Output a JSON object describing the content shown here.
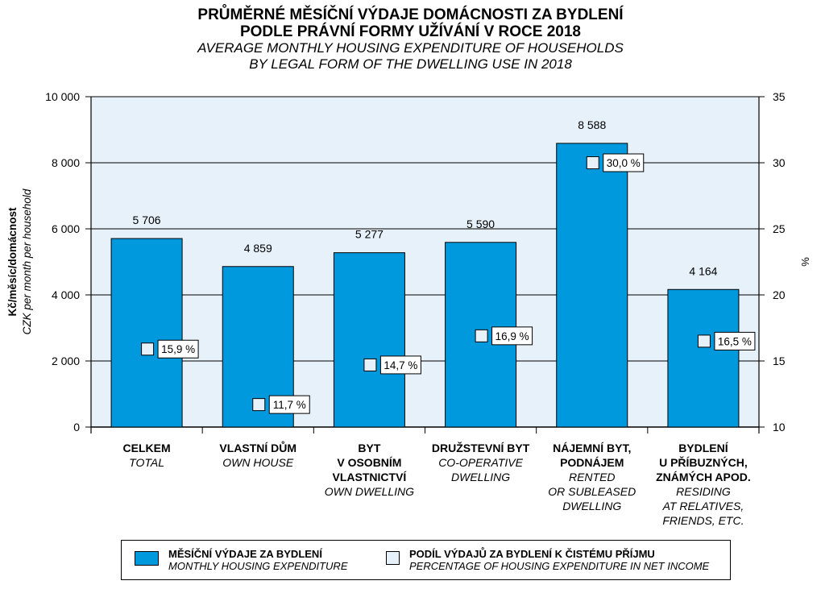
{
  "title": {
    "cz_line1": "PRŮMĚRNÉ MĚSÍČNÍ VÝDAJE DOMÁCNOSTI ZA BYDLENÍ",
    "cz_line2": "PODLE PRÁVNÍ FORMY UŽÍVÁNÍ V ROCE 2018",
    "en_line1": "AVERAGE MONTHLY HOUSING EXPENDITURE OF HOUSEHOLDS",
    "en_line2": "BY LEGAL FORM OF THE DWELLING USE IN 2018"
  },
  "legend": {
    "bar_cz": "MĚSÍČNÍ VÝDAJE ZA BYDLENÍ",
    "bar_en": "MONTHLY HOUSING EXPENDITURE",
    "mark_cz": "PODÍL VÝDAJŮ ZA BYDLENÍ K ČISTÉMU PŘÍJMU",
    "mark_en": "PERCENTAGE OF HOUSING EXPENDITURE IN NET INCOME"
  },
  "colors": {
    "bar": "#0099dd",
    "plot_bg": "#e6f1f9",
    "marker": "#e6f1f9"
  },
  "chart_data": {
    "type": "bar",
    "ylabel_cz": "Kč/měsíc/domácnost",
    "ylabel_en": "CZK per month per household",
    "y2label": "%",
    "ylim": [
      0,
      10000
    ],
    "y_ticks": [
      "0",
      "2 000",
      "4 000",
      "6 000",
      "8 000",
      "10 000"
    ],
    "y_tick_values": [
      0,
      2000,
      4000,
      6000,
      8000,
      10000
    ],
    "y2lim": [
      10,
      35
    ],
    "y2_ticks": [
      "10",
      "15",
      "20",
      "25",
      "30",
      "35"
    ],
    "y2_tick_values": [
      10,
      15,
      20,
      25,
      30,
      35
    ],
    "grid": "horizontal",
    "categories": [
      {
        "cz": [
          "CELKEM"
        ],
        "en": [
          "TOTAL"
        ]
      },
      {
        "cz": [
          "VLASTNÍ DŮM"
        ],
        "en": [
          "OWN HOUSE"
        ]
      },
      {
        "cz": [
          "BYT",
          "V OSOBNÍM",
          "VLASTNICTVÍ"
        ],
        "en": [
          "OWN DWELLING"
        ]
      },
      {
        "cz": [
          "DRUŽSTEVNÍ BYT"
        ],
        "en": [
          "CO-OPERATIVE",
          "DWELLING"
        ]
      },
      {
        "cz": [
          "NÁJEMNÍ BYT,",
          "PODNÁJEM"
        ],
        "en": [
          "RENTED",
          "OR SUBLEASED",
          "DWELLING"
        ]
      },
      {
        "cz": [
          "BYDLENÍ",
          "U PŘÍBUZNÝCH,",
          "ZNÁMÝCH APOD."
        ],
        "en": [
          "RESIDING",
          "AT RELATIVES,",
          "FRIENDS, ETC."
        ]
      }
    ],
    "series": [
      {
        "axis": "left",
        "values": [
          5706,
          4859,
          5277,
          5590,
          8588,
          4164
        ],
        "labels": [
          "5 706",
          "4 859",
          "5 277",
          "5 590",
          "8 588",
          "4 164"
        ]
      },
      {
        "axis": "right",
        "values": [
          15.9,
          11.7,
          14.7,
          16.9,
          30.0,
          16.5
        ],
        "labels": [
          "15,9 %",
          "11,7 %",
          "14,7 %",
          "16,9 %",
          "30,0 %",
          "16,5 %"
        ]
      }
    ]
  }
}
